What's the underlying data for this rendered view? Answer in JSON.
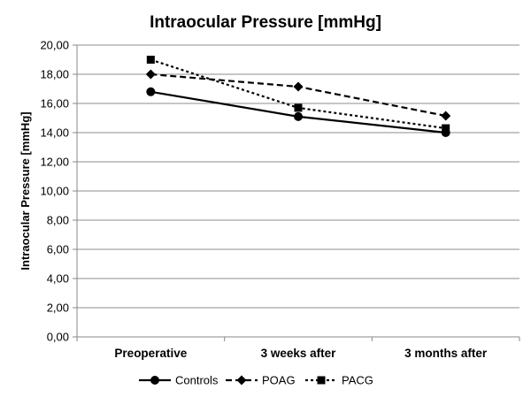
{
  "chart_data": {
    "type": "line",
    "title": "Intraocular Pressure [mmHg]",
    "xlabel": "",
    "ylabel": "Intraocular Pressure [mmHg]",
    "categories": [
      "Preoperative",
      "3 weeks after",
      "3 months after"
    ],
    "ylim": [
      0,
      20
    ],
    "ytick_step": 2,
    "ytick_labels": [
      "0,00",
      "2,00",
      "4,00",
      "6,00",
      "8,00",
      "10,00",
      "12,00",
      "14,00",
      "16,00",
      "18,00",
      "20,00"
    ],
    "grid": true,
    "legend_position": "bottom",
    "series": [
      {
        "name": "Controls",
        "values": [
          16.8,
          15.1,
          14.0
        ],
        "line_style": "solid",
        "marker": "circle"
      },
      {
        "name": "POAG",
        "values": [
          18.0,
          17.15,
          15.15
        ],
        "line_style": "dashed",
        "marker": "diamond"
      },
      {
        "name": "PACG",
        "values": [
          19.0,
          15.7,
          14.3
        ],
        "line_style": "dotted",
        "marker": "square"
      }
    ]
  }
}
